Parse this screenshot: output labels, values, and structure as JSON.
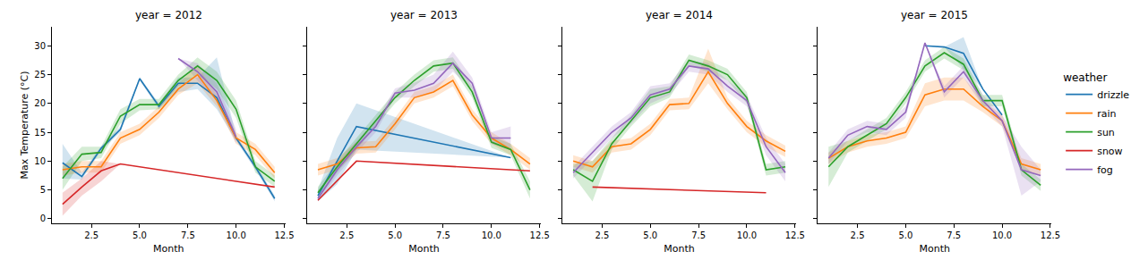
{
  "chart_data": [
    {
      "type": "line",
      "title": "year = 2012",
      "xlabel": "Month",
      "ylabel": "Max Temperature (°C)",
      "xlim": [
        0.45,
        12.55
      ],
      "ylim": [
        -0.8,
        33.3
      ],
      "xticks": [
        {
          "value": 2.5,
          "label": "2.5"
        },
        {
          "value": 5,
          "label": "5.0"
        },
        {
          "value": 7.5,
          "label": "7.5"
        },
        {
          "value": 10,
          "label": "10.0"
        },
        {
          "value": 12.5,
          "label": "12.5"
        }
      ],
      "yticks": [
        0,
        5,
        10,
        15,
        20,
        25,
        30
      ],
      "grid": false,
      "legend": "right",
      "legend_title": "weather",
      "series": [
        {
          "name": "drizzle",
          "color": "#1f77b4",
          "x": [
            1,
            2,
            3,
            4,
            5,
            6,
            7,
            8,
            9,
            10,
            11,
            12
          ],
          "values": [
            9.7,
            7.3,
            12.2,
            15.5,
            24.3,
            19.5,
            23.5,
            23.5,
            21,
            14,
            9,
            3.5
          ],
          "lower": [
            7,
            6.8,
            11.8,
            15,
            24,
            19,
            22,
            22.5,
            19,
            13.5,
            8.5,
            3
          ],
          "upper": [
            13,
            8,
            12.6,
            16,
            24.6,
            20,
            24.5,
            24.5,
            28,
            14.5,
            9.5,
            4
          ]
        },
        {
          "name": "rain",
          "color": "#ff7f0e",
          "x": [
            1,
            2,
            3,
            4,
            5,
            6,
            7,
            8,
            9,
            10,
            11,
            12
          ],
          "values": [
            8.5,
            9,
            9,
            14,
            15.5,
            18.5,
            22.5,
            25,
            20.5,
            14,
            12,
            8
          ],
          "lower": [
            7.5,
            8,
            8,
            13,
            14.5,
            17.5,
            21.5,
            23.5,
            19.5,
            13,
            11,
            7
          ],
          "upper": [
            9.5,
            10,
            10,
            15,
            16.5,
            19.5,
            23.5,
            26.5,
            21.5,
            15,
            13,
            9
          ]
        },
        {
          "name": "sun",
          "color": "#2ca02c",
          "x": [
            1,
            2,
            3,
            4,
            5,
            6,
            7,
            8,
            9,
            10,
            11,
            12
          ],
          "values": [
            7,
            11.2,
            11.5,
            17.8,
            19.8,
            19.8,
            24,
            26.5,
            24,
            19,
            9,
            6.5
          ],
          "lower": [
            5,
            10,
            10.5,
            16.5,
            18.8,
            19,
            23,
            25,
            22.5,
            17.5,
            8,
            5.5
          ],
          "upper": [
            9,
            12.5,
            12.5,
            19,
            20.8,
            20.8,
            25,
            28,
            25.5,
            20.5,
            10,
            7.5
          ]
        },
        {
          "name": "snow",
          "color": "#d62728",
          "x": [
            1,
            2,
            3,
            4,
            12
          ],
          "values": [
            2.5,
            5.5,
            8.3,
            9.5,
            5.5
          ],
          "lower": [
            0.5,
            4,
            6.5,
            9.5,
            5.5
          ],
          "upper": [
            4.5,
            7,
            10,
            9.5,
            5.5
          ]
        },
        {
          "name": "fog",
          "color": "#9467bd",
          "x": [
            7,
            8,
            9,
            10
          ],
          "values": [
            27.8,
            25.5,
            22,
            14.2
          ],
          "lower": [
            27.8,
            24,
            20.5,
            13
          ],
          "upper": [
            27.8,
            27,
            23.5,
            15.5
          ]
        }
      ]
    },
    {
      "type": "line",
      "title": "year = 2013",
      "xlabel": "Month",
      "xlim": [
        0.45,
        12.55
      ],
      "ylim": [
        -0.8,
        33.3
      ],
      "xticks": [
        {
          "value": 2.5,
          "label": "2.5"
        },
        {
          "value": 5,
          "label": "5.0"
        },
        {
          "value": 7.5,
          "label": "7.5"
        },
        {
          "value": 10,
          "label": "10.0"
        },
        {
          "value": 12.5,
          "label": "12.5"
        }
      ],
      "yticks": [
        0,
        5,
        10,
        15,
        20,
        25,
        30
      ],
      "grid": false,
      "tick_labels": "x",
      "series": [
        {
          "name": "drizzle",
          "color": "#1f77b4",
          "x": [
            1,
            2,
            3,
            11
          ],
          "values": [
            4,
            10,
            16,
            10.6
          ],
          "lower": [
            3,
            6,
            12,
            10.6
          ],
          "upper": [
            5,
            14,
            20,
            10.6
          ]
        },
        {
          "name": "rain",
          "color": "#ff7f0e",
          "x": [
            1,
            2,
            3,
            4,
            5,
            6,
            7,
            8,
            9,
            10,
            11,
            12
          ],
          "values": [
            8.5,
            9.5,
            12.3,
            12.5,
            16.5,
            21,
            22,
            24,
            18,
            14,
            12,
            9.5
          ],
          "lower": [
            7.5,
            8.5,
            11.3,
            11.5,
            15.5,
            20,
            21,
            23,
            17,
            13,
            11,
            8.5
          ],
          "upper": [
            9.5,
            10.5,
            13.3,
            13.5,
            17.5,
            22,
            23,
            25,
            19,
            15,
            13,
            10.5
          ]
        },
        {
          "name": "sun",
          "color": "#2ca02c",
          "x": [
            1,
            2,
            3,
            4,
            5,
            6,
            7,
            8,
            9,
            10,
            11,
            12
          ],
          "values": [
            4.5,
            9,
            13,
            17,
            21,
            24,
            26.5,
            27,
            22,
            13.3,
            12,
            5
          ],
          "lower": [
            3.5,
            8,
            12,
            16,
            20,
            23,
            25.5,
            26,
            21,
            12.3,
            11,
            3.5
          ],
          "upper": [
            5.5,
            10,
            14,
            18,
            22,
            25,
            27.5,
            28,
            23,
            14.3,
            13,
            6.5
          ]
        },
        {
          "name": "snow",
          "color": "#d62728",
          "x": [
            1,
            3,
            12
          ],
          "values": [
            3.2,
            10,
            8.3
          ]
        },
        {
          "name": "fog",
          "color": "#9467bd",
          "x": [
            1,
            2,
            3,
            4,
            5,
            6,
            7,
            8,
            9,
            10,
            11
          ],
          "values": [
            3.5,
            8.5,
            12.5,
            16,
            21.8,
            22.3,
            23.5,
            27,
            23.5,
            14,
            14
          ],
          "lower": [
            3,
            7.5,
            11.5,
            15,
            21,
            21,
            22,
            25.5,
            22.5,
            13,
            12
          ],
          "upper": [
            4,
            9.5,
            13.5,
            17,
            22.6,
            23.6,
            25,
            29,
            24.5,
            15,
            16
          ]
        }
      ]
    },
    {
      "type": "line",
      "title": "year = 2014",
      "xlabel": "Month",
      "xlim": [
        0.45,
        12.55
      ],
      "ylim": [
        -0.8,
        33.3
      ],
      "xticks": [
        {
          "value": 2.5,
          "label": "2.5"
        },
        {
          "value": 5,
          "label": "5.0"
        },
        {
          "value": 7.5,
          "label": "7.5"
        },
        {
          "value": 10,
          "label": "10.0"
        },
        {
          "value": 12.5,
          "label": "12.5"
        }
      ],
      "yticks": [
        0,
        5,
        10,
        15,
        20,
        25,
        30
      ],
      "grid": false,
      "tick_labels": "x",
      "series": [
        {
          "name": "rain",
          "color": "#ff7f0e",
          "x": [
            1,
            2,
            3,
            4,
            5,
            6,
            7,
            8,
            9,
            10,
            11,
            12
          ],
          "values": [
            10,
            9,
            12.5,
            13,
            15.5,
            19.8,
            20,
            25.5,
            20,
            16,
            13.5,
            11.7
          ],
          "lower": [
            9,
            8,
            11.5,
            12,
            14.5,
            18.8,
            19,
            23.5,
            19,
            15,
            12.5,
            10.7
          ],
          "upper": [
            11,
            10,
            13.5,
            14,
            16.5,
            20.8,
            21,
            29.5,
            21,
            17,
            14.5,
            12.7
          ]
        },
        {
          "name": "sun",
          "color": "#2ca02c",
          "x": [
            1,
            2,
            3,
            4,
            5,
            6,
            7,
            8,
            9,
            10,
            11,
            12
          ],
          "values": [
            8.5,
            6.5,
            13,
            17,
            21,
            22,
            27.5,
            26.5,
            25,
            21,
            8.5,
            9
          ],
          "lower": [
            7.5,
            3,
            12,
            16,
            19.5,
            21,
            26.5,
            25.5,
            24,
            20,
            7.5,
            8
          ],
          "upper": [
            9.5,
            10,
            14,
            18,
            22.5,
            23,
            28.5,
            27.5,
            26,
            22,
            9.5,
            10
          ]
        },
        {
          "name": "snow",
          "color": "#d62728",
          "x": [
            2,
            11
          ],
          "values": [
            5.5,
            4.5
          ]
        },
        {
          "name": "fog",
          "color": "#9467bd",
          "x": [
            1,
            3,
            4,
            5,
            6,
            7,
            8,
            9,
            10,
            11,
            12
          ],
          "values": [
            8,
            15,
            17.5,
            21.5,
            22.5,
            26.5,
            26,
            23,
            20.5,
            12.5,
            8
          ],
          "lower": [
            7,
            14,
            16.5,
            20,
            21.5,
            25.5,
            25,
            22,
            19.5,
            11,
            6.5
          ],
          "upper": [
            9,
            16,
            18.5,
            23,
            23.5,
            27.5,
            27,
            24,
            21.5,
            14,
            9.5
          ]
        }
      ]
    },
    {
      "type": "line",
      "title": "year = 2015",
      "xlabel": "Month",
      "xlim": [
        0.45,
        12.55
      ],
      "ylim": [
        -0.8,
        33.3
      ],
      "xticks": [
        {
          "value": 2.5,
          "label": "2.5"
        },
        {
          "value": 5,
          "label": "5.0"
        },
        {
          "value": 7.5,
          "label": "7.5"
        },
        {
          "value": 10,
          "label": "10.0"
        },
        {
          "value": 12.5,
          "label": "12.5"
        }
      ],
      "yticks": [
        0,
        5,
        10,
        15,
        20,
        25,
        30
      ],
      "grid": false,
      "tick_labels": "x",
      "series": [
        {
          "name": "drizzle",
          "color": "#1f77b4",
          "x": [
            6,
            7,
            8,
            9,
            10
          ],
          "values": [
            30,
            29.8,
            28.7,
            22.5,
            18
          ],
          "lower": [
            30,
            29.8,
            26,
            22.5,
            18
          ],
          "upper": [
            30,
            29.8,
            31.5,
            22.5,
            18
          ]
        },
        {
          "name": "rain",
          "color": "#ff7f0e",
          "x": [
            1,
            2,
            3,
            4,
            5,
            6,
            7,
            8,
            9,
            10,
            11,
            12
          ],
          "values": [
            10.5,
            12.5,
            13.5,
            14,
            15,
            21.5,
            22.5,
            22.5,
            19.5,
            17,
            9.5,
            8.5
          ],
          "lower": [
            9.5,
            11.5,
            12.5,
            13,
            14,
            19.5,
            20.5,
            20.5,
            18.5,
            16,
            8.5,
            7.5
          ],
          "upper": [
            11.5,
            13.5,
            14.5,
            15,
            16,
            23.5,
            24.5,
            24.5,
            20.5,
            18,
            10.5,
            9.5
          ]
        },
        {
          "name": "sun",
          "color": "#2ca02c",
          "x": [
            1,
            2,
            3,
            4,
            5,
            6,
            7,
            8,
            9,
            10,
            11,
            12
          ],
          "values": [
            9,
            12.5,
            14.5,
            16.5,
            21,
            26.5,
            28.8,
            26.8,
            20.5,
            20.5,
            8.5,
            5.8
          ],
          "lower": [
            5.5,
            11.5,
            13.5,
            15.5,
            20,
            25.5,
            27.8,
            25.8,
            19.5,
            19.5,
            7.5,
            4.8
          ],
          "upper": [
            12.5,
            13.5,
            15.5,
            17.5,
            22,
            27.5,
            29.8,
            27.8,
            21.5,
            21.5,
            9.5,
            6.8
          ]
        },
        {
          "name": "fog",
          "color": "#9467bd",
          "x": [
            1,
            2,
            3,
            4,
            5,
            6,
            7,
            8,
            9,
            10,
            11,
            12
          ],
          "values": [
            10.5,
            14.5,
            16,
            15.5,
            18.5,
            30.5,
            22,
            25.5,
            20.5,
            17,
            8.5,
            7.5
          ],
          "lower": [
            9.5,
            13.5,
            15,
            14.5,
            17.5,
            30.5,
            21,
            24.5,
            19.5,
            16,
            4,
            6.5
          ],
          "upper": [
            11.5,
            15.5,
            17,
            16.5,
            19.5,
            30.5,
            23,
            26.5,
            21.5,
            18,
            12.5,
            8.5
          ]
        }
      ]
    }
  ]
}
